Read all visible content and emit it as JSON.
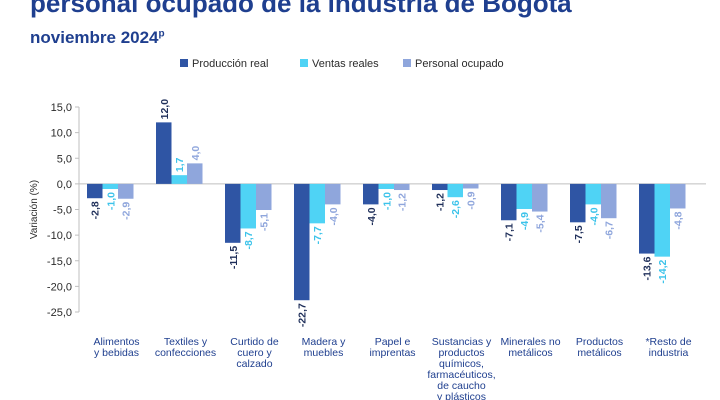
{
  "header": {
    "title": "personal ocupado de la industria de Bogotá",
    "subtitle": "noviembre 2024",
    "subtitle_sup": "p"
  },
  "chart_data": {
    "type": "bar",
    "title": "personal ocupado de la industria de Bogotá",
    "subtitle": "noviembre 2024p",
    "ylabel": "Variación (%)",
    "xlabel": "",
    "ylim": [
      -25,
      15
    ],
    "yticks": [
      15,
      10,
      5,
      0,
      -5,
      -10,
      -15,
      -20,
      -25
    ],
    "ytick_labels": [
      "15,0",
      "10,0",
      "5,0",
      "0,0",
      "-5,0",
      "-10,0",
      "-15,0",
      "-20,0",
      "-25,0"
    ],
    "grid": false,
    "legend_position": "top",
    "categories": [
      "Alimentos y bebidas",
      "Textiles y confecciones",
      "Curtido de cuero y calzado",
      "Madera y muebles",
      "Papel e imprentas",
      "Sustancias y productos químicos, farmacéuticos, de caucho y plásticos",
      "Minerales no metálicos",
      "Productos metálicos",
      "*Resto de industria"
    ],
    "category_lines": [
      [
        "Alimentos",
        "y bebidas"
      ],
      [
        "Textiles y",
        "confecciones"
      ],
      [
        "Curtido de",
        "cuero y",
        "calzado"
      ],
      [
        "Madera y",
        "muebles"
      ],
      [
        "Papel e",
        "imprentas"
      ],
      [
        "Sustancias y",
        "productos",
        "químicos,",
        "farmacéuticos,",
        "de caucho",
        "y plásticos"
      ],
      [
        "Minerales no",
        "metálicos"
      ],
      [
        "Productos",
        "metálicos"
      ],
      [
        "*Resto de",
        "industria"
      ]
    ],
    "series": [
      {
        "name": "Producción real",
        "color": "#2f55a4",
        "values": [
          -2.8,
          12.0,
          -11.5,
          -22.7,
          -4.0,
          -1.2,
          -7.1,
          -7.5,
          -13.6
        ],
        "labels": [
          "-2,8",
          "12,0",
          "-11,5",
          "-22,7",
          "-4,0",
          "-1,2",
          "-7,1",
          "-7,5",
          "-13,6"
        ]
      },
      {
        "name": "Ventas reales",
        "color": "#4fd3f5",
        "values": [
          -1.0,
          1.7,
          -8.7,
          -7.7,
          -1.0,
          -2.6,
          -4.9,
          -4.0,
          -14.2
        ],
        "labels": [
          "-1,0",
          "1,7",
          "-8,7",
          "-7,7",
          "-1,0",
          "-2,6",
          "-4,9",
          "-4,0",
          "-14,2"
        ]
      },
      {
        "name": "Personal ocupado",
        "color": "#8fa6dc",
        "values": [
          -2.9,
          4.0,
          -5.1,
          -4.0,
          -1.2,
          -0.9,
          -5.4,
          -6.7,
          -4.8
        ],
        "labels": [
          "-2,9",
          "4,0",
          "-5,1",
          "-4,0",
          "-1,2",
          "-0,9",
          "-5,4",
          "-6,7",
          "-4,8"
        ]
      }
    ]
  }
}
